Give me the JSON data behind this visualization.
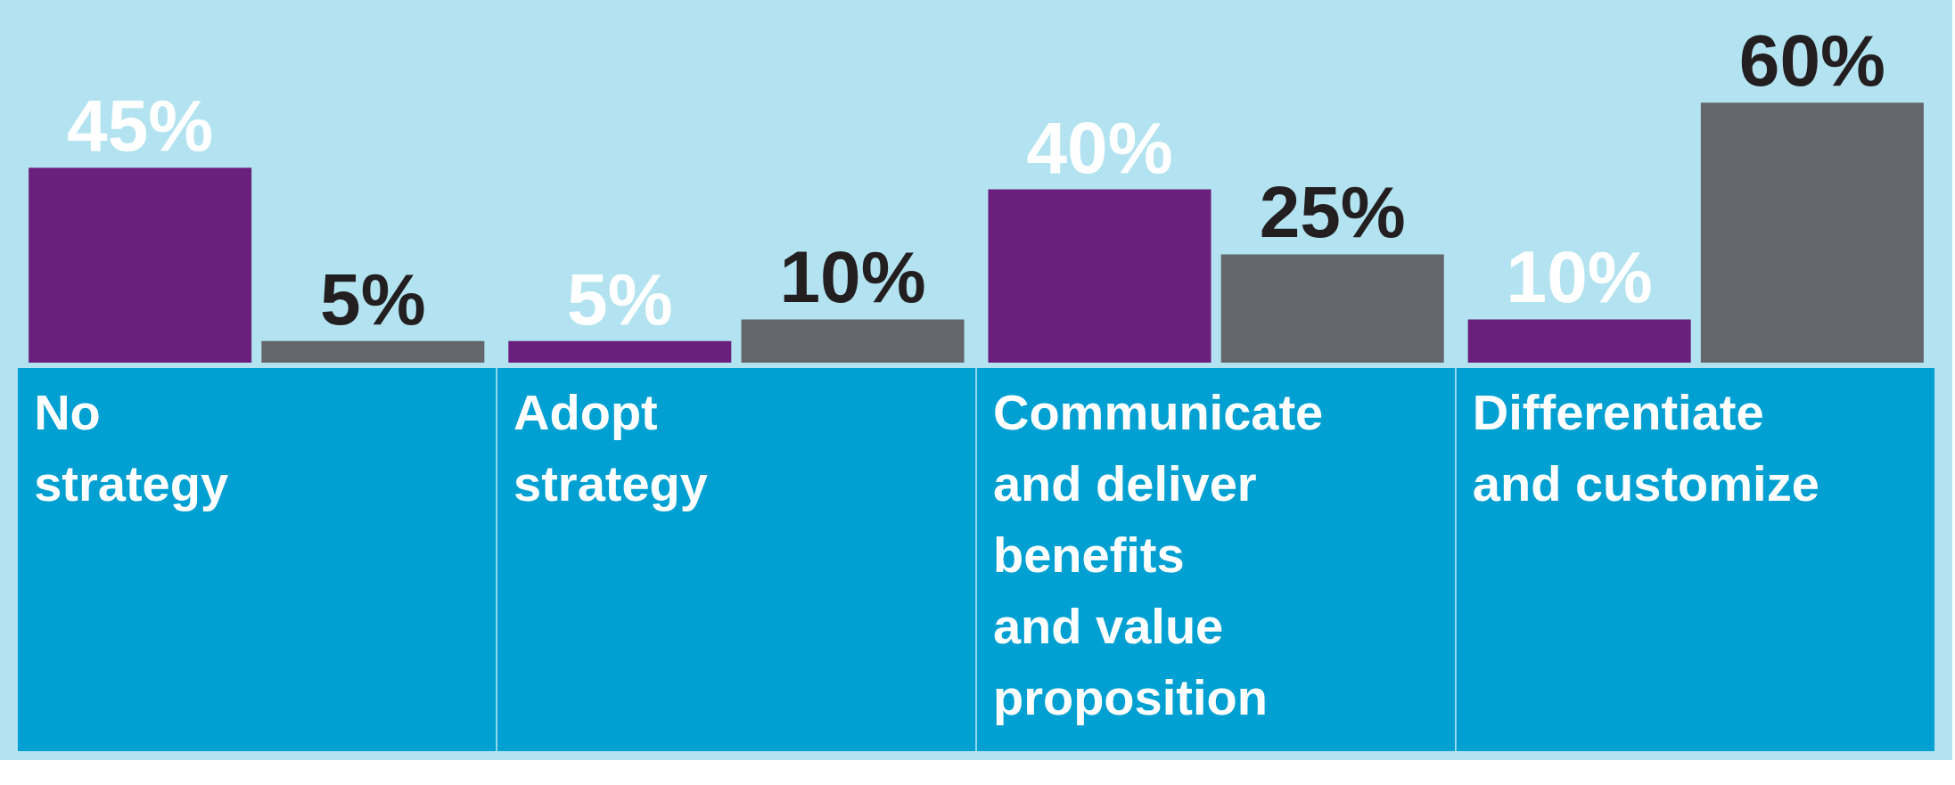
{
  "chart_data": {
    "type": "bar",
    "categories": [
      "No\nstrategy",
      "Adopt\nstrategy",
      "Communicate\nand deliver\nbenefits\nand value\nproposition",
      "Differentiate\nand customize"
    ],
    "series": [
      {
        "color": "#6b1f7c",
        "values": [
          45,
          5,
          40,
          10
        ],
        "value_labels": [
          "45%",
          "5%",
          "40%",
          "10%"
        ]
      },
      {
        "color": "#63666a",
        "values": [
          5,
          10,
          25,
          60
        ],
        "value_labels": [
          "5%",
          "10%",
          "25%",
          "60%"
        ]
      }
    ],
    "grid": false,
    "legend": false
  }
}
